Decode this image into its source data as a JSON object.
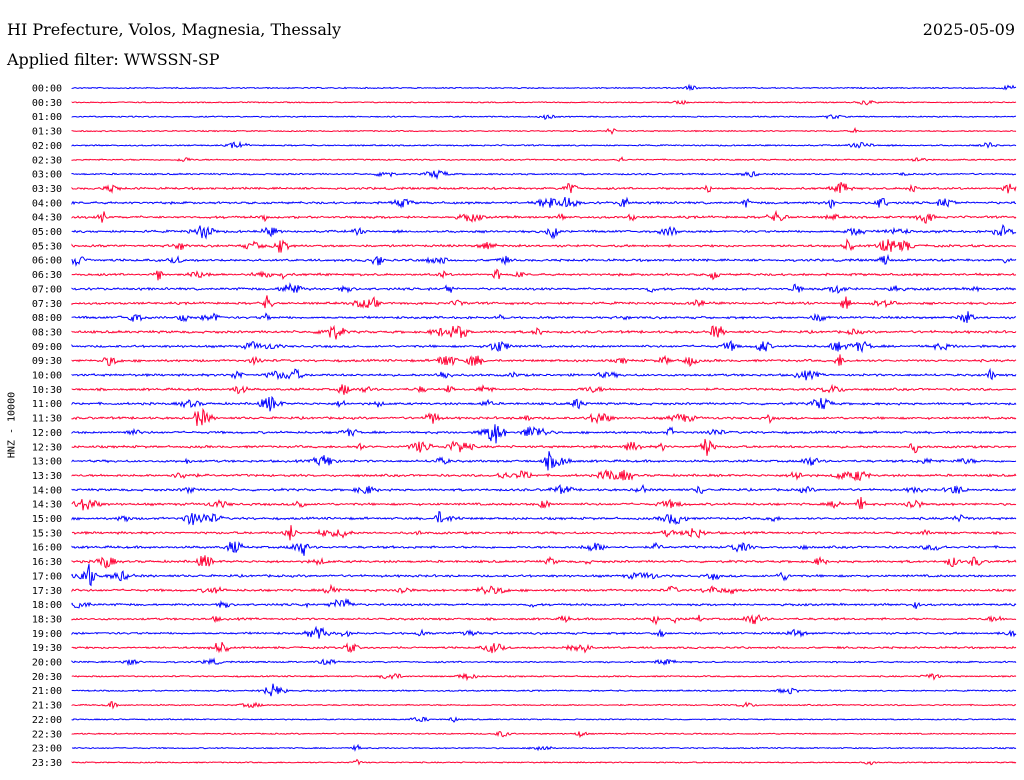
{
  "header": {
    "station": "HI Prefecture, Volos, Magnesia, Thessaly",
    "date": "2025-05-09",
    "filter": "Applied filter: WWSSN-SP"
  },
  "chart_data": {
    "type": "line",
    "ylabel": "HNZ - 10000",
    "trace_colors": [
      "#0000ff",
      "#ff0033"
    ],
    "rows": [
      "00:00",
      "00:30",
      "01:00",
      "01:30",
      "02:00",
      "02:30",
      "03:00",
      "03:30",
      "04:00",
      "04:30",
      "05:00",
      "05:30",
      "06:00",
      "06:30",
      "07:00",
      "07:30",
      "08:00",
      "08:30",
      "09:00",
      "09:30",
      "10:00",
      "10:30",
      "11:00",
      "11:30",
      "12:00",
      "12:30",
      "13:00",
      "13:30",
      "14:00",
      "14:30",
      "15:00",
      "15:30",
      "16:00",
      "16:30",
      "17:00",
      "17:30",
      "18:00",
      "18:30",
      "19:00",
      "19:30",
      "20:00",
      "20:30",
      "21:00",
      "21:30",
      "22:00",
      "22:30",
      "23:00",
      "23:30"
    ],
    "activity": [
      0.2,
      0.15,
      0.2,
      0.2,
      0.3,
      0.3,
      0.4,
      0.7,
      0.8,
      0.8,
      0.8,
      0.8,
      0.8,
      0.8,
      0.8,
      0.8,
      0.8,
      0.9,
      0.8,
      0.8,
      0.8,
      0.8,
      0.8,
      0.8,
      0.8,
      0.8,
      0.8,
      0.8,
      0.8,
      0.8,
      0.8,
      0.8,
      0.8,
      0.8,
      0.8,
      0.8,
      0.7,
      0.7,
      0.7,
      0.6,
      0.4,
      0.3,
      0.3,
      0.25,
      0.2,
      0.2,
      0.2,
      0.2
    ],
    "grid": false
  }
}
